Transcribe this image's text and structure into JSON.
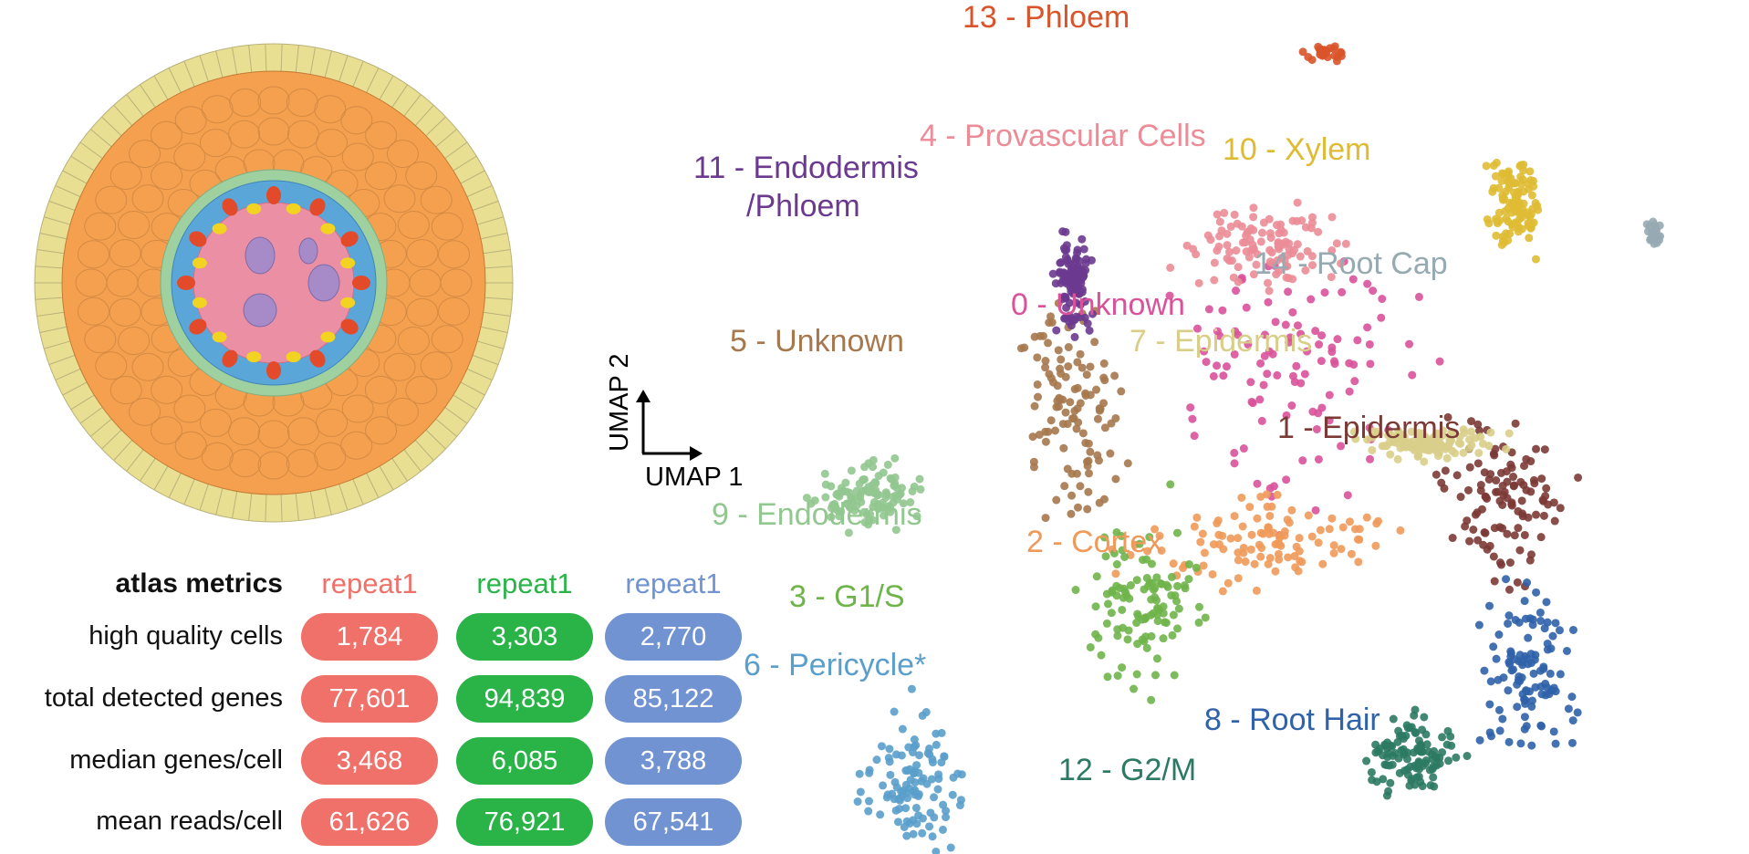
{
  "metrics": {
    "header": "atlas metrics",
    "repeats": [
      {
        "label": "repeat1",
        "color": "#f07169"
      },
      {
        "label": "repeat1",
        "color": "#2ab448"
      },
      {
        "label": "repeat1",
        "color": "#7193d1"
      }
    ],
    "rows": [
      {
        "label": "high quality cells",
        "values": [
          "1,784",
          "3,303",
          "2,770"
        ]
      },
      {
        "label": "total detected genes",
        "values": [
          "77,601",
          "94,839",
          "85,122"
        ]
      },
      {
        "label": "median genes/cell",
        "values": [
          "3,468",
          "6,085",
          "3,788"
        ]
      },
      {
        "label": "mean reads/cell",
        "values": [
          "61,626",
          "76,921",
          "67,541"
        ]
      }
    ]
  },
  "axes": {
    "x_label": "UMAP 1",
    "y_label": "UMAP 2"
  },
  "root_colors": {
    "epidermis": "#e8df92",
    "cortex": "#f5a04f",
    "endodermis": "#9fd0a0",
    "pericycle": "#5ba6d8",
    "stele": "#ea8fa4",
    "xylem": "#f2d321",
    "phloem": "#e24a2a",
    "metaxylem": "#a68bc8"
  },
  "chart_data": {
    "type": "scatter",
    "title": "",
    "xlabel": "UMAP 1",
    "ylabel": "UMAP 2",
    "clusters": [
      {
        "id": 0,
        "label": "0 - Unknown",
        "color": "#d9529a",
        "x": 1.3,
        "y": 2.2
      },
      {
        "id": 1,
        "label": "1 - Epidermis",
        "color": "#7c3a36",
        "x": 4.2,
        "y": 0.1
      },
      {
        "id": 2,
        "label": "2 - Cortex",
        "color": "#ef9a5a",
        "x": 0.9,
        "y": -0.6
      },
      {
        "id": 3,
        "label": "3 - G1/S",
        "color": "#6fb44a",
        "x": -0.9,
        "y": -1.6
      },
      {
        "id": 4,
        "label": "4 - Provascular Cells",
        "color": "#eb8c97",
        "x": 0.8,
        "y": 4.4
      },
      {
        "id": 5,
        "label": "5 - Unknown",
        "color": "#a6784e",
        "x": -1.9,
        "y": 1.6
      },
      {
        "id": 6,
        "label": "6 - Pericycle*",
        "color": "#5a9fcb",
        "x": -4.2,
        "y": -4.6
      },
      {
        "id": 7,
        "label": "7 - Epidermis",
        "color": "#d8ce8a",
        "x": 3.2,
        "y": 1.1
      },
      {
        "id": 8,
        "label": "8 - Root Hair",
        "color": "#2f62a8",
        "x": 4.6,
        "y": -2.8
      },
      {
        "id": 9,
        "label": "9 - Endodermis",
        "color": "#92c790",
        "x": -4.8,
        "y": 0.2
      },
      {
        "id": 10,
        "label": "10 - Xylem",
        "color": "#dfbb33",
        "x": 4.4,
        "y": 5.1
      },
      {
        "id": 11,
        "label": "11 - Endodermis\n/Phloem",
        "color": "#6b3a8f",
        "x": -1.9,
        "y": 3.8
      },
      {
        "id": 12,
        "label": "12 - G2/M",
        "color": "#2c7a63",
        "x": 3.0,
        "y": -4.1
      },
      {
        "id": 13,
        "label": "13 - Phloem",
        "color": "#d9542a",
        "x": 1.7,
        "y": 7.6
      },
      {
        "id": 14,
        "label": "14 - Root Cap",
        "color": "#97aab2",
        "x": 6.4,
        "y": 4.6
      }
    ]
  }
}
